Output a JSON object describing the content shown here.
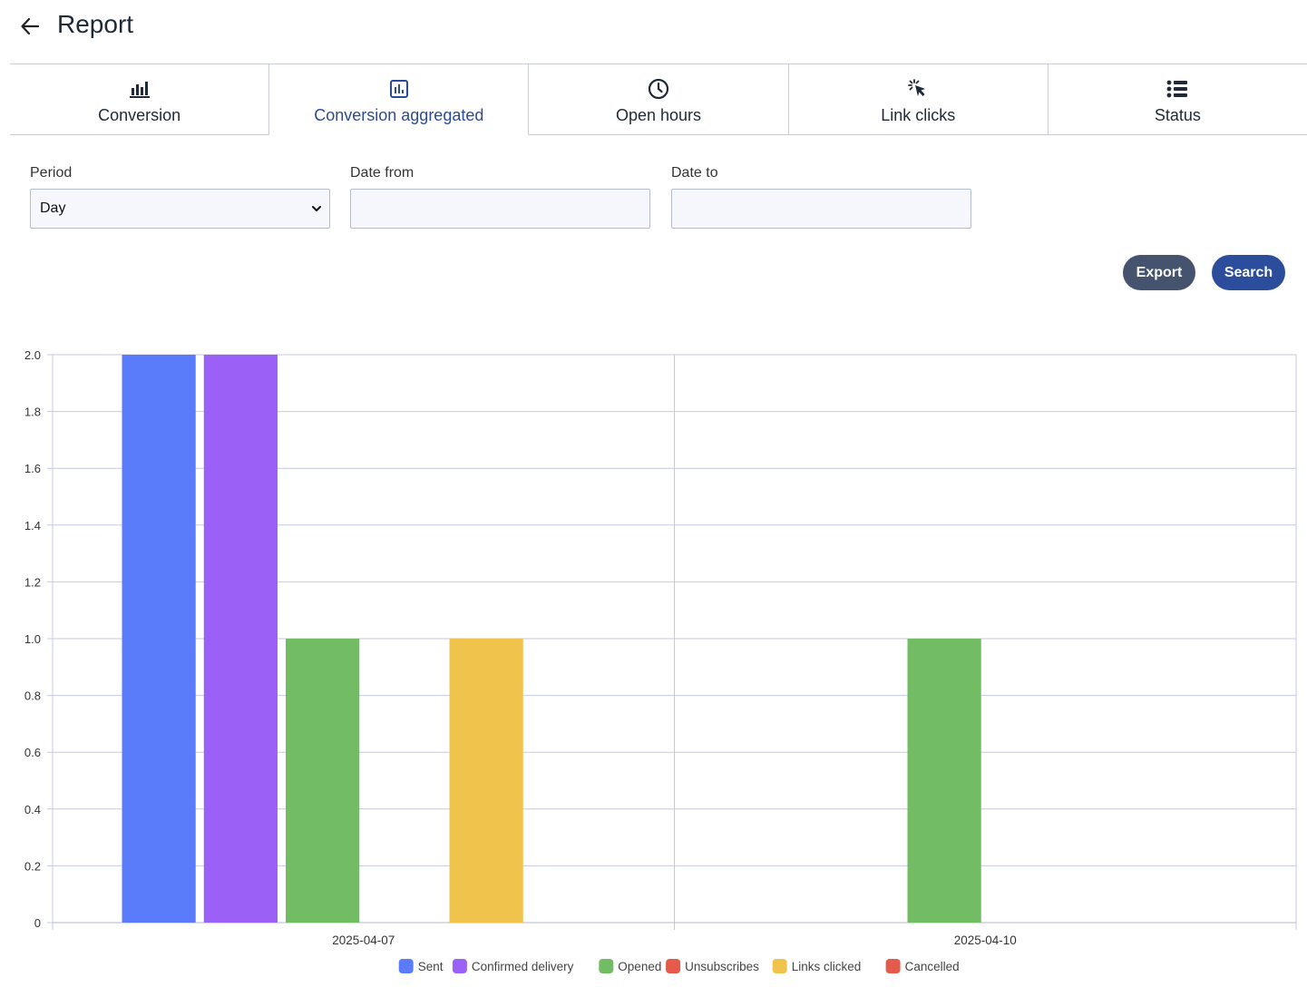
{
  "header": {
    "title": "Report"
  },
  "tabs": [
    {
      "label": "Conversion",
      "icon": "bar-chart-icon",
      "active": false
    },
    {
      "label": "Conversion aggregated",
      "icon": "chart-box-icon",
      "active": true
    },
    {
      "label": "Open hours",
      "icon": "clock-icon",
      "active": false
    },
    {
      "label": "Link clicks",
      "icon": "cursor-click-icon",
      "active": false
    },
    {
      "label": "Status",
      "icon": "list-icon",
      "active": false
    }
  ],
  "filters": {
    "period_label": "Period",
    "period_value": "Day",
    "date_from_label": "Date from",
    "date_from_value": "",
    "date_to_label": "Date to",
    "date_to_value": ""
  },
  "actions": {
    "export_label": "Export",
    "search_label": "Search"
  },
  "chart_data": {
    "type": "bar",
    "categories": [
      "2025-04-07",
      "2025-04-10"
    ],
    "series": [
      {
        "name": "Sent",
        "color": "#5b7cfa",
        "values": [
          2,
          0
        ]
      },
      {
        "name": "Confirmed delivery",
        "color": "#9b61f7",
        "values": [
          2,
          0
        ]
      },
      {
        "name": "Opened",
        "color": "#72bc64",
        "values": [
          1,
          1
        ]
      },
      {
        "name": "Unsubscribes",
        "color": "#e55a4a",
        "values": [
          0,
          0
        ]
      },
      {
        "name": "Links clicked",
        "color": "#f0c44c",
        "values": [
          1,
          0
        ]
      },
      {
        "name": "Cancelled",
        "color": "#e55a4a",
        "values": [
          0,
          0
        ]
      }
    ],
    "ylim": [
      0,
      2
    ],
    "yticks": [
      "0",
      "0.2",
      "0.4",
      "0.6",
      "0.8",
      "1.0",
      "1.2",
      "1.4",
      "1.6",
      "1.8",
      "2.0"
    ],
    "grid": true,
    "legend_position": "bottom"
  }
}
